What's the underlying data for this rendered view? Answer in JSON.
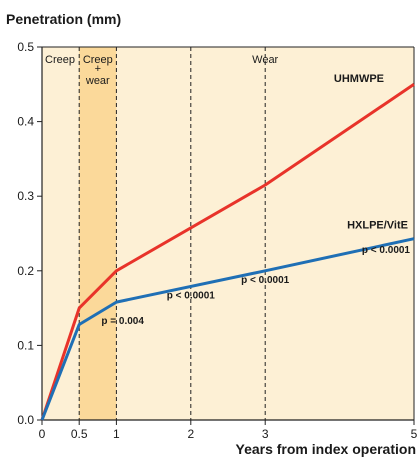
{
  "chart_data": {
    "type": "line",
    "ylabel": "Penetration (mm)",
    "xlabel": "Years from index operation",
    "xlim": [
      0,
      5
    ],
    "ylim": [
      0,
      0.5
    ],
    "x_ticks": [
      0,
      0.5,
      1,
      2,
      3,
      5
    ],
    "y_ticks": [
      0.0,
      0.1,
      0.2,
      0.3,
      0.4,
      0.5
    ],
    "x_tick_labels": [
      "0",
      "0.5",
      "1",
      "2",
      "3",
      "5"
    ],
    "y_tick_labels": [
      "0.0",
      "0.1",
      "0.2",
      "0.3",
      "0.4",
      "0.5"
    ],
    "phases": [
      {
        "label": "Creep",
        "x_from": 0,
        "x_to": 0.5
      },
      {
        "label_lines": [
          "Creep",
          "+",
          "wear"
        ],
        "x_from": 0.5,
        "x_to": 1
      },
      {
        "label": "Wear",
        "x_from": 1,
        "x_to": 5
      }
    ],
    "vertical_guides": [
      0.5,
      1,
      2,
      3
    ],
    "series": [
      {
        "name": "UHMWPE",
        "color": "#e8332a",
        "x": [
          0,
          0.5,
          1,
          3,
          5
        ],
        "y": [
          0,
          0.15,
          0.2,
          0.315,
          0.45
        ]
      },
      {
        "name": "HXLPE/VitE",
        "color": "#1f6fb5",
        "x": [
          0,
          0.5,
          1,
          3,
          5
        ],
        "y": [
          0,
          0.128,
          0.158,
          0.2,
          0.243
        ]
      }
    ],
    "annotations": [
      {
        "text": "p = 0.004",
        "x": 1,
        "y": 0.133
      },
      {
        "text": "p < 0.0001",
        "x": 2,
        "y": 0.167
      },
      {
        "text": "p < 0.0001",
        "x": 3,
        "y": 0.188
      },
      {
        "text": "p < 0.0001",
        "x": 5,
        "y": 0.228
      }
    ],
    "colors": {
      "background": "#fdf0d5",
      "phase_highlight": "#fbd99a",
      "axis": "#222222"
    }
  }
}
